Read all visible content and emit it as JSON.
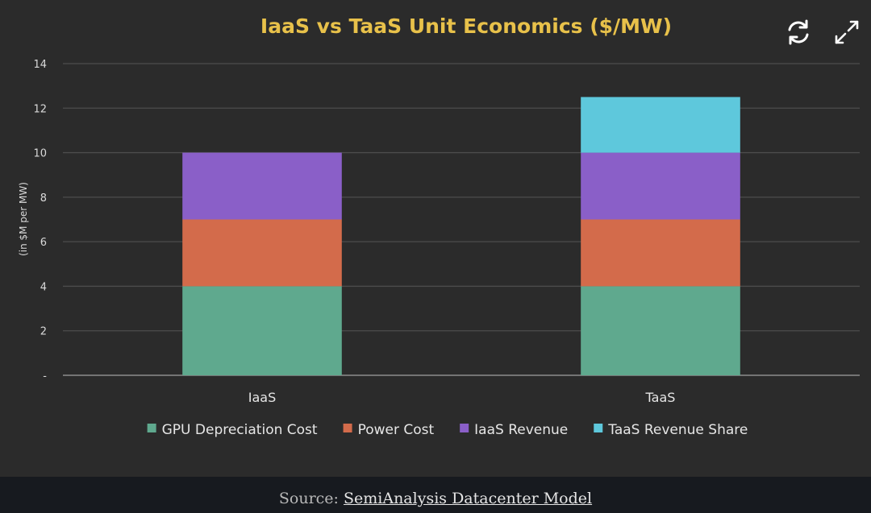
{
  "chart_data": {
    "type": "bar",
    "stacked": true,
    "title": "IaaS vs TaaS Unit Economics ($/MW)",
    "ylabel": "(in $M per MW)",
    "xlabel": "",
    "categories": [
      "IaaS",
      "TaaS"
    ],
    "ylim": [
      0,
      14
    ],
    "yticks": [
      "-",
      "2",
      "4",
      "6",
      "8",
      "10",
      "12",
      "14"
    ],
    "grid": true,
    "legend_position": "bottom",
    "series": [
      {
        "name": "GPU Depreciation Cost",
        "color": "#5fa98e",
        "values": [
          4,
          4
        ]
      },
      {
        "name": "Power Cost",
        "color": "#d36b4b",
        "values": [
          3,
          3
        ]
      },
      {
        "name": "IaaS Revenue",
        "color": "#8a5fc8",
        "values": [
          3,
          3
        ]
      },
      {
        "name": "TaaS Revenue Share",
        "color": "#5ec8dc",
        "values": [
          0,
          2.5
        ]
      }
    ]
  },
  "toolbar": {
    "refresh_icon": "refresh-icon",
    "expand_icon": "expand-icon"
  },
  "source": {
    "prefix": "Source:",
    "link_text": "SemiAnalysis Datacenter Model"
  }
}
